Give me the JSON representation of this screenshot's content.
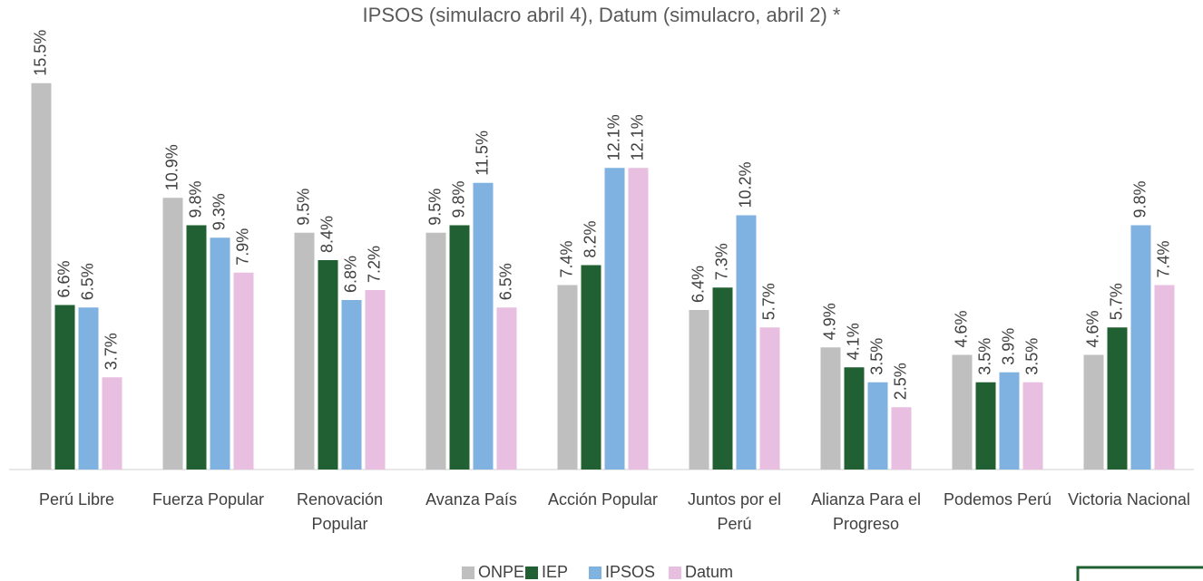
{
  "chart_data": {
    "type": "bar",
    "title": "IPSOS  (simulacro abril 4), Datum (simulacro, abril 2) *",
    "categories": [
      "Perú Libre",
      "Fuerza Popular",
      "Renovación Popular",
      "Avanza País",
      "Acción Popular",
      "Juntos por el Perú",
      "Alianza Para el Progreso",
      "Podemos Perú",
      "Victoria Nacional"
    ],
    "series": [
      {
        "name": "ONPE",
        "color": "#bfbfbf",
        "values": [
          15.5,
          10.9,
          9.5,
          9.5,
          7.4,
          6.4,
          4.9,
          4.6,
          4.6
        ],
        "value_labels": [
          "15.5%",
          "10.9%",
          "9.5%",
          "9.5%",
          "7.4%",
          "6.4%",
          "4.9%",
          "4.6%",
          "4.6%"
        ]
      },
      {
        "name": "IEP",
        "color": "#216032",
        "values": [
          6.6,
          9.8,
          8.4,
          9.8,
          8.2,
          7.3,
          4.1,
          3.5,
          5.7
        ],
        "value_labels": [
          "6.6%",
          "9.8%",
          "8.4%",
          "9.8%",
          "8.2%",
          "7.3%",
          "4.1%",
          "3.5%",
          "5.7%"
        ]
      },
      {
        "name": "IPSOS",
        "color": "#7fb2e0",
        "values": [
          6.5,
          9.3,
          6.8,
          11.5,
          12.1,
          10.2,
          3.5,
          3.9,
          9.8
        ],
        "value_labels": [
          "6.5%",
          "9.3%",
          "6.8%",
          "11.5%",
          "12.1%",
          "10.2%",
          "3.5%",
          "3.9%",
          "9.8%"
        ]
      },
      {
        "name": "Datum",
        "color": "#e8bfe0",
        "values": [
          3.7,
          7.9,
          7.2,
          6.5,
          12.1,
          5.7,
          2.5,
          3.5,
          7.4
        ],
        "value_labels": [
          "3.7%",
          "7.9%",
          "7.2%",
          "6.5%",
          "12.1%",
          "5.7%",
          "2.5%",
          "3.5%",
          "7.4%"
        ]
      }
    ],
    "ylim": [
      0,
      16
    ],
    "legend": "bottom"
  }
}
